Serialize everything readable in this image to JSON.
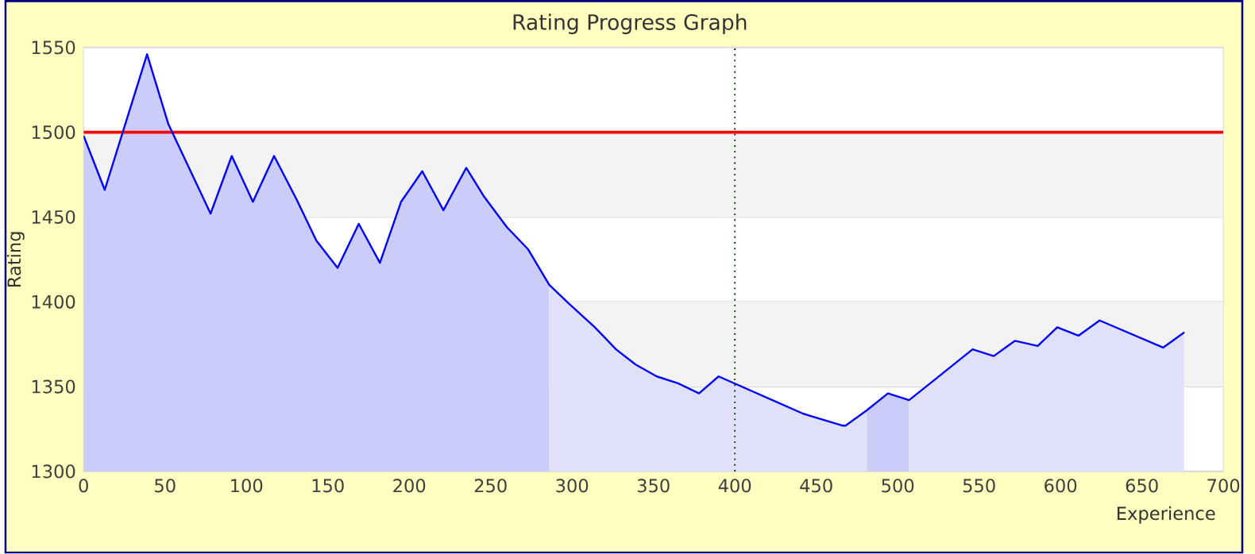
{
  "chart_data": {
    "type": "line",
    "title": "Rating Progress Graph",
    "xlabel": "Experience",
    "ylabel": "Rating",
    "xlim": [
      0,
      700
    ],
    "xticks": [
      0,
      50,
      100,
      150,
      200,
      250,
      300,
      350,
      400,
      450,
      500,
      550,
      600,
      650,
      700
    ],
    "ylim": [
      1300,
      1550
    ],
    "yticks": [
      1300,
      1350,
      1400,
      1450,
      1500,
      1550
    ],
    "grid": "y",
    "bands": [
      {
        "axis": "y",
        "from": 1350,
        "to": 1400,
        "color": "#f3f3f3"
      },
      {
        "axis": "y",
        "from": 1450,
        "to": 1500,
        "color": "#f3f3f3"
      }
    ],
    "ref_lines": [
      {
        "axis": "y",
        "value": 1500,
        "color": "#ff0000",
        "line_style": "solid"
      },
      {
        "axis": "x",
        "value": 400,
        "color": "#003300",
        "line_style": "dotted"
      }
    ],
    "series": [
      {
        "type": "area",
        "color": "#ccccf9",
        "x": [
          0,
          13,
          39,
          52,
          78,
          91,
          104,
          117,
          131,
          143,
          156,
          169,
          182,
          195,
          208,
          221,
          235,
          246,
          260,
          273,
          286
        ],
        "values": [
          1498,
          1466,
          1546,
          1505,
          1452,
          1486,
          1459,
          1486,
          1460,
          1436,
          1420,
          1446,
          1423,
          1459,
          1477,
          1454,
          1479,
          1462,
          1444,
          1431,
          1410
        ]
      },
      {
        "type": "area",
        "color": "#e0e0f9",
        "x": [
          286,
          298,
          314,
          327,
          339,
          352,
          365,
          378,
          390,
          442,
          466,
          468,
          481
        ],
        "values": [
          1410,
          1399,
          1385,
          1372,
          1363,
          1356,
          1352,
          1346,
          1356,
          1334,
          1327,
          1327,
          1336
        ]
      },
      {
        "type": "area",
        "color": "#ccccf9",
        "x": [
          481,
          494,
          507
        ],
        "values": [
          1336,
          1346,
          1342
        ]
      },
      {
        "type": "area",
        "color": "#e0e0f9",
        "x": [
          507,
          520,
          546,
          559,
          572,
          586,
          598,
          611,
          624,
          663,
          676
        ],
        "values": [
          1342,
          1352,
          1372,
          1368,
          1377,
          1374,
          1385,
          1380,
          1389,
          1373,
          1382
        ]
      },
      {
        "color": "#0000ff",
        "line_style": "solid",
        "x": [
          0,
          13,
          39,
          52,
          78,
          91,
          104,
          117,
          131,
          143,
          156,
          169,
          182,
          195,
          208,
          221,
          235,
          246,
          260,
          273,
          286,
          298,
          314,
          327,
          339,
          352,
          365,
          378,
          390,
          442,
          466,
          468,
          481,
          494,
          507,
          520,
          546,
          559,
          572,
          586,
          598,
          611,
          624,
          663,
          676
        ],
        "values": [
          1498,
          1466,
          1546,
          1505,
          1452,
          1486,
          1459,
          1486,
          1460,
          1436,
          1420,
          1446,
          1423,
          1459,
          1477,
          1454,
          1479,
          1462,
          1444,
          1431,
          1410,
          1399,
          1385,
          1372,
          1363,
          1356,
          1352,
          1346,
          1356,
          1334,
          1327,
          1327,
          1336,
          1346,
          1342,
          1352,
          1372,
          1368,
          1377,
          1374,
          1385,
          1380,
          1389,
          1373,
          1382
        ]
      }
    ]
  }
}
